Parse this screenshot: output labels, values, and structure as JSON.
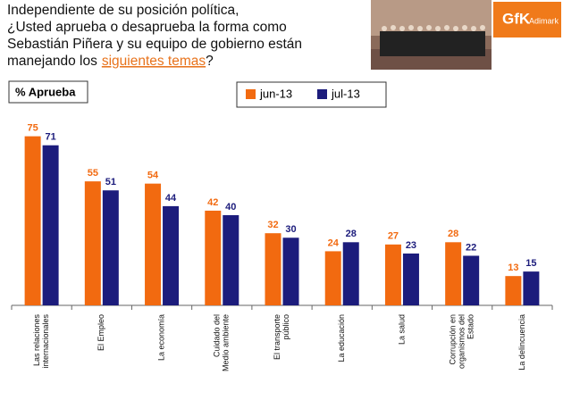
{
  "title": {
    "lines": [
      "Independiente de su posición política,",
      "¿Usted aprueba o desaprueba la forma como",
      "Sebastián Piñera y su equipo de gobierno están"
    ],
    "last": [
      "manejando los",
      "siguientes temas",
      "?"
    ]
  },
  "logo": {
    "brand": "GfK",
    "sub": "Adimark"
  },
  "chart_data": {
    "type": "bar",
    "subtitle": "% Aprueba",
    "categories": [
      [
        "Las relaciones",
        "internacionales"
      ],
      [
        "El Empleo"
      ],
      [
        "La economía"
      ],
      [
        "Cuidado del",
        "Medio ambiente"
      ],
      [
        "El transporte",
        "público"
      ],
      [
        "La educación"
      ],
      [
        "La salud"
      ],
      [
        "Corrupción en",
        "organismos del",
        "Estado"
      ],
      [
        "La delincuencia"
      ]
    ],
    "series": [
      {
        "name": "jun-13",
        "color": "#f26a10",
        "values": [
          75,
          55,
          54,
          42,
          32,
          24,
          27,
          28,
          13
        ]
      },
      {
        "name": "jul-13",
        "color": "#1c1c7c",
        "values": [
          71,
          51,
          44,
          40,
          30,
          28,
          23,
          22,
          15
        ]
      }
    ],
    "ylim": [
      0,
      80
    ]
  }
}
